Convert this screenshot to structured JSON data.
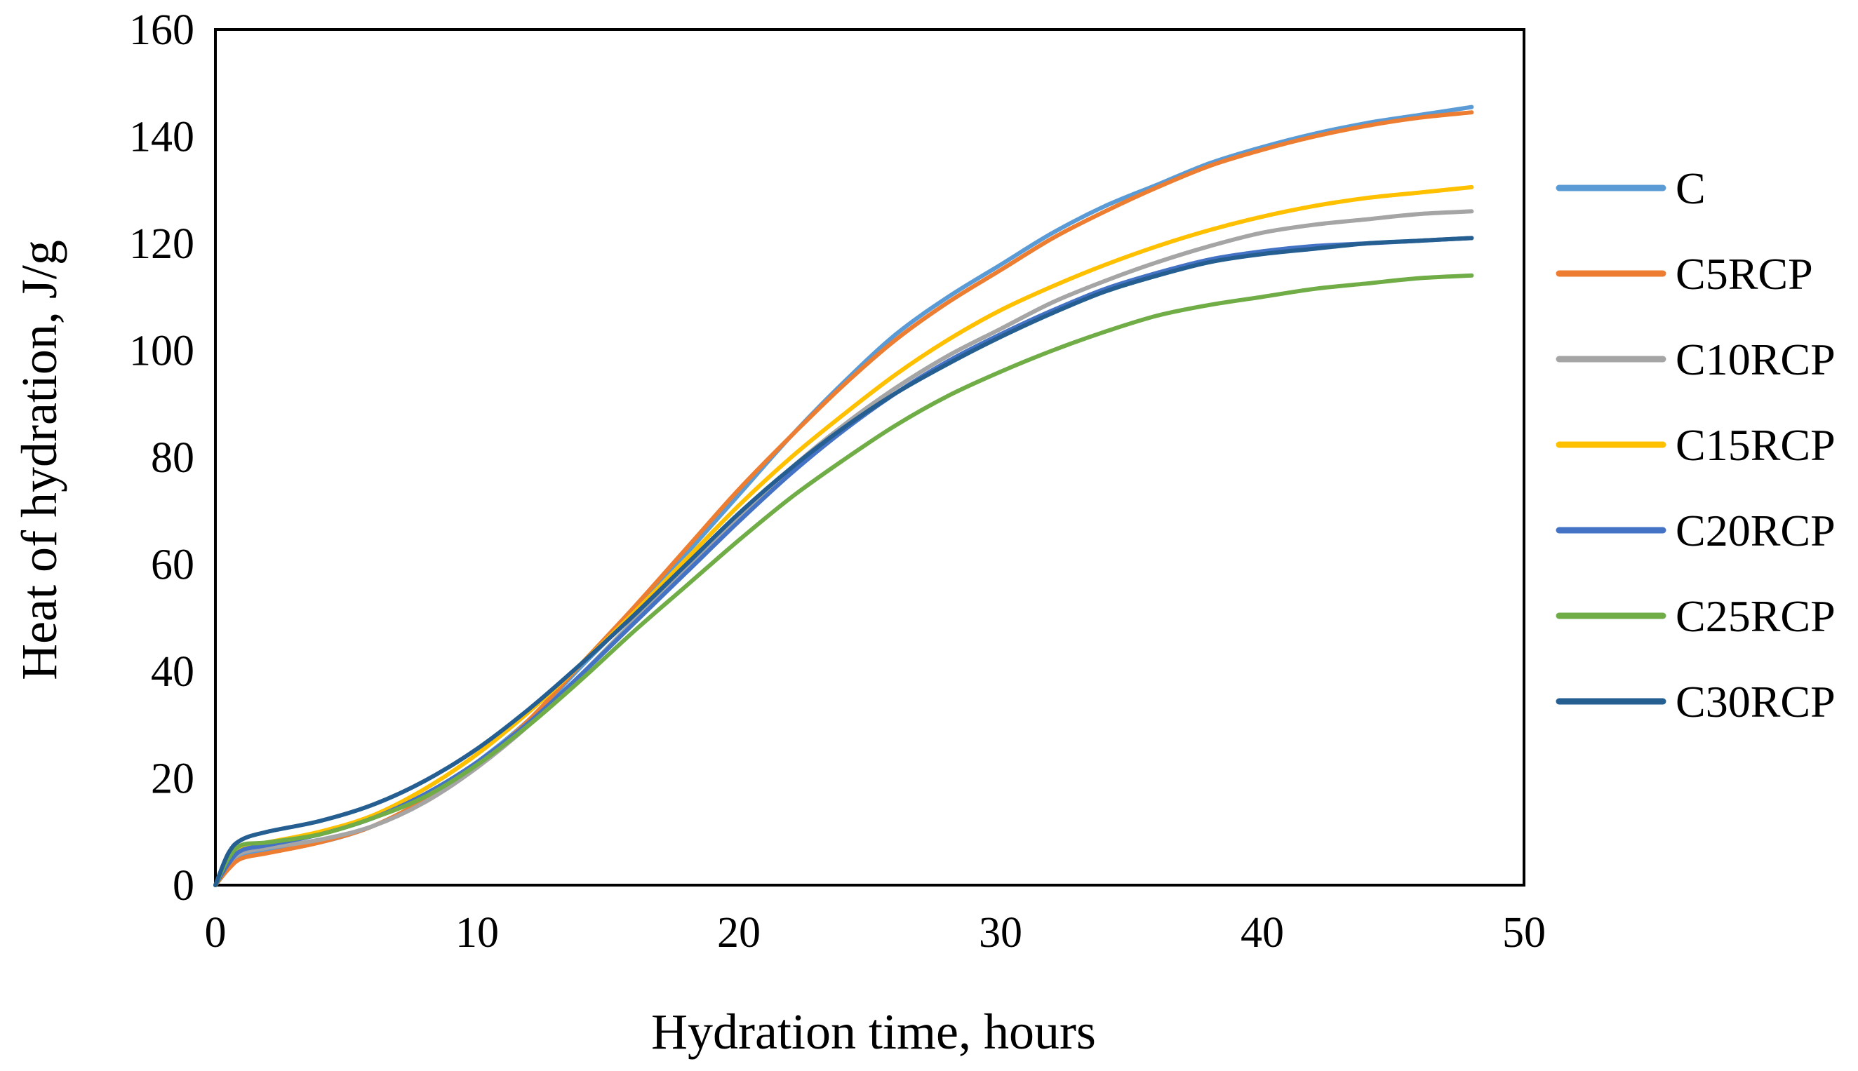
{
  "chart_data": {
    "type": "line",
    "title": "",
    "xlabel": "Hydration  time,  hours",
    "ylabel": "Heat of hydration,  J/g",
    "xlim": [
      0,
      50
    ],
    "ylim": [
      0,
      160
    ],
    "xticks": [
      0,
      10,
      20,
      30,
      40,
      50
    ],
    "yticks": [
      0,
      20,
      40,
      60,
      80,
      100,
      120,
      140,
      160
    ],
    "grid": false,
    "legend_position": "right",
    "x": [
      0,
      0.5,
      1,
      2,
      4,
      6,
      8,
      10,
      12,
      14,
      16,
      18,
      20,
      22,
      24,
      26,
      28,
      30,
      32,
      34,
      36,
      38,
      40,
      42,
      44,
      46,
      48
    ],
    "series": [
      {
        "name": "C",
        "color": "#5b9bd5",
        "values": [
          0,
          3.5,
          5.5,
          6.5,
          8,
          11,
          16,
          23,
          31,
          41,
          51,
          62,
          73,
          84,
          94,
          103,
          110,
          116,
          122,
          127,
          131,
          135,
          138,
          140.5,
          142.5,
          144,
          145.5
        ]
      },
      {
        "name": "C5RCP",
        "color": "#ed7d31",
        "values": [
          0,
          3,
          5,
          6,
          8,
          11,
          16,
          22.5,
          31,
          41.5,
          52,
          63,
          74,
          84,
          93.5,
          102,
          109,
          115,
          121,
          126,
          130.5,
          134.5,
          137.5,
          140,
          142,
          143.5,
          144.5
        ]
      },
      {
        "name": "C10RCP",
        "color": "#a5a5a5",
        "values": [
          0,
          4,
          6,
          7,
          8.5,
          11,
          15.5,
          22,
          30,
          39.5,
          49.5,
          59.5,
          69,
          78,
          86,
          93,
          99,
          104,
          109,
          113,
          116.5,
          119.5,
          122,
          123.5,
          124.5,
          125.5,
          126
        ]
      },
      {
        "name": "C15RCP",
        "color": "#ffc000",
        "values": [
          0,
          4.5,
          7,
          8,
          10,
          13,
          18,
          24.5,
          32.5,
          41.5,
          51,
          61,
          71,
          80,
          88,
          95.5,
          102,
          107.5,
          112,
          116,
          119.5,
          122.5,
          125,
          127,
          128.5,
          129.5,
          130.5
        ]
      },
      {
        "name": "C20RCP",
        "color": "#4472c4",
        "values": [
          0,
          4,
          6.5,
          7.5,
          9.5,
          12.5,
          17,
          23,
          30.5,
          39.5,
          49,
          58.5,
          68,
          77,
          85,
          92,
          98,
          103,
          107.5,
          111.5,
          114.5,
          117,
          118.5,
          119.5,
          120,
          120.5,
          121
        ]
      },
      {
        "name": "C25RCP",
        "color": "#70ad47",
        "values": [
          0,
          5,
          7.5,
          8,
          9.5,
          12.5,
          16.5,
          22.5,
          30,
          38.5,
          47.5,
          56,
          64.5,
          72.5,
          79.5,
          86,
          91.5,
          96,
          100,
          103.5,
          106.5,
          108.5,
          110,
          111.5,
          112.5,
          113.5,
          114
        ]
      },
      {
        "name": "C30RCP",
        "color": "#255e91",
        "values": [
          0,
          6,
          8.5,
          10,
          12,
          15,
          19.5,
          25.5,
          33,
          41.5,
          50.5,
          60,
          69.5,
          78,
          85.5,
          92,
          97.5,
          102.5,
          107,
          111,
          114,
          116.5,
          118,
          119,
          120,
          120.5,
          121
        ]
      }
    ]
  }
}
